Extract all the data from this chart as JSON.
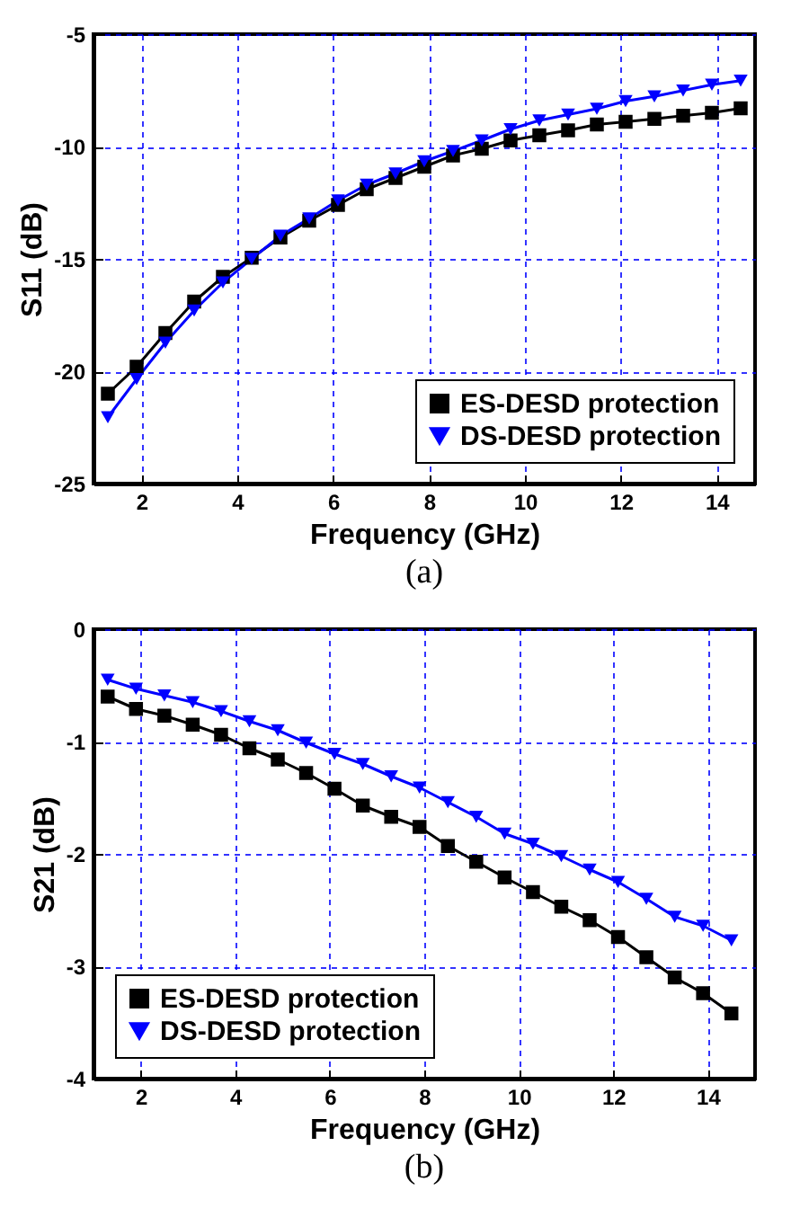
{
  "chart_data": [
    {
      "type": "line",
      "xlabel": "Frequency (GHz)",
      "ylabel": "S11 (dB)",
      "annotations": [
        "(a)"
      ],
      "x": [
        1.3,
        1.9,
        2.5,
        3.1,
        3.7,
        4.3,
        4.9,
        5.5,
        6.1,
        6.7,
        7.3,
        7.9,
        8.5,
        9.1,
        9.7,
        10.3,
        10.9,
        11.5,
        12.1,
        12.7,
        13.3,
        13.9,
        14.5
      ],
      "series": [
        {
          "name": "ES-DESD protection",
          "color": "#000000",
          "marker": "square",
          "values": [
            -21.0,
            -19.8,
            -18.3,
            -16.9,
            -15.8,
            -14.95,
            -14.05,
            -13.3,
            -12.6,
            -11.9,
            -11.4,
            -10.9,
            -10.4,
            -10.1,
            -9.73,
            -9.5,
            -9.28,
            -9.02,
            -8.9,
            -8.77,
            -8.63,
            -8.5,
            -8.3
          ]
        },
        {
          "name": "DS-DESD protection",
          "color": "#0000ff",
          "marker": "triangle",
          "values": [
            -22.05,
            -20.35,
            -18.73,
            -17.3,
            -16.05,
            -15.0,
            -13.97,
            -13.2,
            -12.4,
            -11.7,
            -11.2,
            -10.66,
            -10.2,
            -9.73,
            -9.23,
            -8.84,
            -8.58,
            -8.32,
            -7.98,
            -7.77,
            -7.51,
            -7.25,
            -7.07
          ]
        }
      ],
      "xlim": [
        1,
        14.8
      ],
      "xticks": [
        2,
        4,
        6,
        8,
        10,
        12,
        14
      ],
      "ylim": [
        -25,
        -5
      ],
      "yticks": [
        -25,
        -20,
        -15,
        -10,
        -5
      ],
      "grid": true,
      "legend": "bottom right"
    },
    {
      "type": "line",
      "xlabel": "Frequency (GHz)",
      "ylabel": "S21 (dB)",
      "annotations": [
        "(b)"
      ],
      "x": [
        1.3,
        1.9,
        2.5,
        3.1,
        3.7,
        4.3,
        4.9,
        5.5,
        6.1,
        6.7,
        7.3,
        7.9,
        8.5,
        9.1,
        9.7,
        10.3,
        10.9,
        11.5,
        12.1,
        12.7,
        13.3,
        13.9,
        14.5
      ],
      "series": [
        {
          "name": "ES-DESD protection",
          "color": "#000000",
          "marker": "square",
          "values": [
            -0.6,
            -0.71,
            -0.77,
            -0.85,
            -0.94,
            -1.06,
            -1.16,
            -1.28,
            -1.42,
            -1.57,
            -1.67,
            -1.76,
            -1.93,
            -2.07,
            -2.21,
            -2.34,
            -2.47,
            -2.59,
            -2.74,
            -2.92,
            -3.1,
            -3.24,
            -3.42
          ]
        },
        {
          "name": "DS-DESD protection",
          "color": "#0000ff",
          "marker": "triangle",
          "values": [
            -0.45,
            -0.53,
            -0.59,
            -0.65,
            -0.73,
            -0.82,
            -0.9,
            -1.01,
            -1.11,
            -1.2,
            -1.31,
            -1.41,
            -1.54,
            -1.67,
            -1.82,
            -1.91,
            -2.02,
            -2.14,
            -2.25,
            -2.4,
            -2.56,
            -2.64,
            -2.77
          ]
        }
      ],
      "xlim": [
        1,
        15
      ],
      "xticks": [
        2,
        4,
        6,
        8,
        10,
        12,
        14
      ],
      "ylim": [
        -4,
        0
      ],
      "yticks": [
        -4,
        -3,
        -2,
        -1,
        0
      ],
      "grid": true,
      "legend": "bottom left"
    }
  ]
}
